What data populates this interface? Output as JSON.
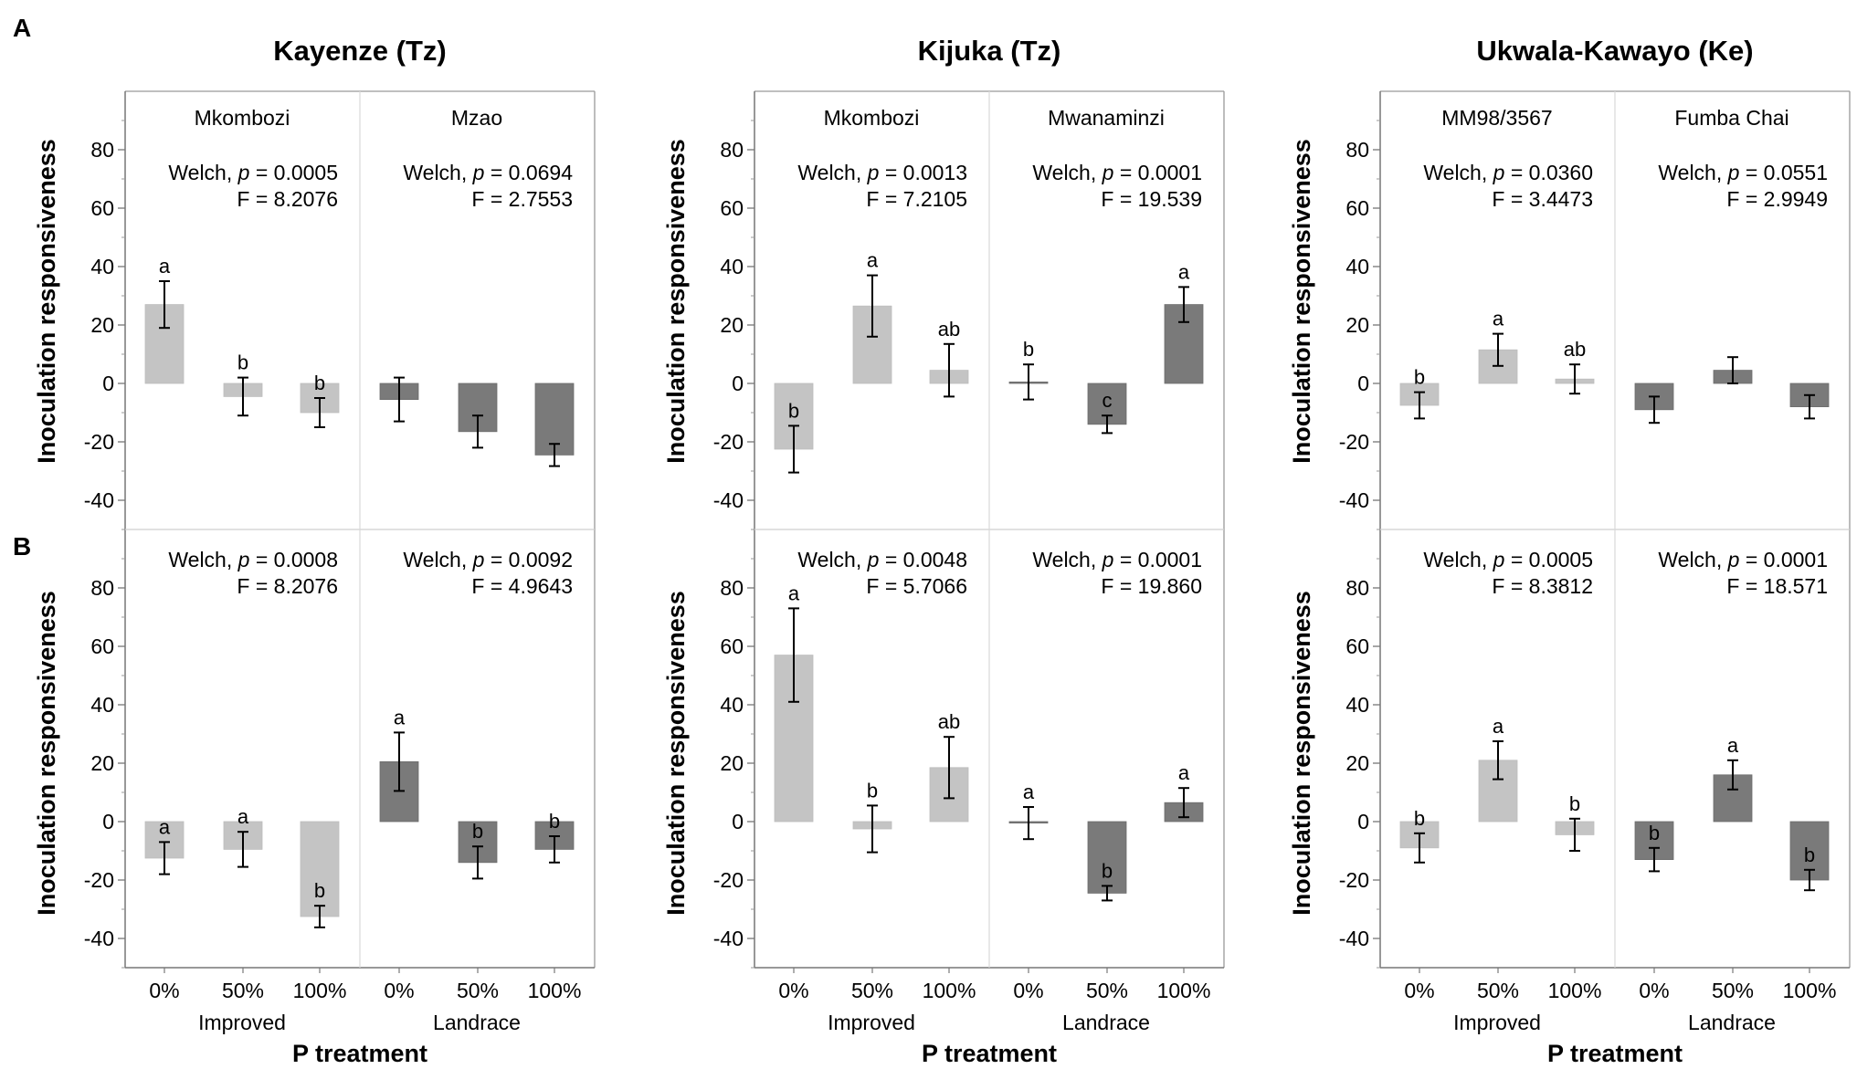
{
  "figure": {
    "row_labels": [
      "A",
      "B"
    ],
    "x_treatment_label": "P treatment",
    "y_axis_label": "Inoculation responsiveness",
    "welch_prefix": "Welch, ",
    "p_letter": "p",
    "colors": {
      "improved": "#c4c4c4",
      "landrace": "#7a7a7a",
      "axis": "#999999",
      "text": "#000000",
      "bar_outline": "#aaaaaa"
    }
  },
  "chart_data": [
    {
      "type": "bar",
      "title": "Kayenze (Tz)",
      "ylabel": "Inoculation responsiveness",
      "xlabel": "P treatment",
      "ylim": [
        -50,
        100
      ],
      "yticks": [
        -40,
        -20,
        0,
        20,
        40,
        60,
        80
      ],
      "categories": [
        "0%",
        "50%",
        "100%"
      ],
      "groups": [
        "Improved",
        "Landrace"
      ],
      "varieties": [
        "Mkombozi",
        "Mzao"
      ],
      "rows": [
        {
          "row": "A",
          "panels": [
            {
              "variety": "Mkombozi",
              "group": "Improved",
              "stats": [
                "= 0.0005",
                "F = 8.2076"
              ],
              "values": [
                27,
                -4.5,
                -10
              ],
              "errors": [
                8,
                6.5,
                5
              ],
              "letters": [
                "a",
                "b",
                "b"
              ]
            },
            {
              "variety": "Mzao",
              "group": "Landrace",
              "stats": [
                "= 0.0694",
                "F = 2.7553"
              ],
              "values": [
                -5.5,
                -16.5,
                -24.5
              ],
              "errors": [
                7.5,
                5.5,
                3.8
              ],
              "letters": [
                "",
                "",
                ""
              ]
            }
          ]
        },
        {
          "row": "B",
          "panels": [
            {
              "variety": "",
              "group": "Improved",
              "stats": [
                "= 0.0008",
                "F = 8.2076"
              ],
              "values": [
                -12.5,
                -9.5,
                -32.5
              ],
              "errors": [
                5.5,
                6,
                3.7
              ],
              "letters": [
                "a",
                "a",
                "b"
              ]
            },
            {
              "variety": "",
              "group": "Landrace",
              "stats": [
                "= 0.0092",
                "F = 4.9643"
              ],
              "values": [
                20.5,
                -14,
                -9.5
              ],
              "errors": [
                10,
                5.5,
                4.5
              ],
              "letters": [
                "a",
                "b",
                "b"
              ]
            }
          ]
        }
      ]
    },
    {
      "type": "bar",
      "title": "Kijuka (Tz)",
      "ylabel": "Inoculation responsiveness",
      "xlabel": "P treatment",
      "ylim": [
        -50,
        100
      ],
      "yticks": [
        -40,
        -20,
        0,
        20,
        40,
        60,
        80
      ],
      "categories": [
        "0%",
        "50%",
        "100%"
      ],
      "groups": [
        "Improved",
        "Landrace"
      ],
      "varieties": [
        "Mkombozi",
        "Mwanaminzi"
      ],
      "rows": [
        {
          "row": "A",
          "panels": [
            {
              "variety": "Mkombozi",
              "group": "Improved",
              "stats": [
                "= 0.0013",
                "F = 7.2105"
              ],
              "values": [
                -22.5,
                26.5,
                4.5
              ],
              "errors": [
                8,
                10.5,
                9
              ],
              "letters": [
                "b",
                "a",
                "ab"
              ]
            },
            {
              "variety": "Mwanaminzi",
              "group": "Landrace",
              "stats": [
                "= 0.0001",
                "F = 19.539"
              ],
              "values": [
                0.5,
                -14,
                27
              ],
              "errors": [
                6,
                3,
                6
              ],
              "letters": [
                "b",
                "c",
                "a"
              ]
            }
          ]
        },
        {
          "row": "B",
          "panels": [
            {
              "variety": "",
              "group": "Improved",
              "stats": [
                "= 0.0048",
                "F = 5.7066"
              ],
              "values": [
                57,
                -2.5,
                18.5
              ],
              "errors": [
                16,
                8,
                10.5
              ],
              "letters": [
                "a",
                "b",
                "ab"
              ]
            },
            {
              "variety": "",
              "group": "Landrace",
              "stats": [
                "= 0.0001",
                "F = 19.860"
              ],
              "values": [
                -0.5,
                -24.5,
                6.5
              ],
              "errors": [
                5.5,
                2.5,
                5
              ],
              "letters": [
                "a",
                "b",
                "a"
              ]
            }
          ]
        }
      ]
    },
    {
      "type": "bar",
      "title": "Ukwala-Kawayo (Ke)",
      "ylabel": "Inoculation responsiveness",
      "xlabel": "P treatment",
      "ylim": [
        -50,
        100
      ],
      "yticks": [
        -40,
        -20,
        0,
        20,
        40,
        60,
        80
      ],
      "categories": [
        "0%",
        "50%",
        "100%"
      ],
      "groups": [
        "Improved",
        "Landrace"
      ],
      "varieties": [
        "MM98/3567",
        "Fumba Chai"
      ],
      "rows": [
        {
          "row": "A",
          "panels": [
            {
              "variety": "MM98/3567",
              "group": "Improved",
              "stats": [
                "= 0.0360",
                "F = 3.4473"
              ],
              "values": [
                -7.5,
                11.5,
                1.5
              ],
              "errors": [
                4.5,
                5.5,
                5
              ],
              "letters": [
                "b",
                "a",
                "ab"
              ]
            },
            {
              "variety": "Fumba Chai",
              "group": "Landrace",
              "stats": [
                "= 0.0551",
                "F = 2.9949"
              ],
              "values": [
                -9,
                4.5,
                -8
              ],
              "errors": [
                4.5,
                4.5,
                4
              ],
              "letters": [
                "",
                "",
                ""
              ]
            }
          ]
        },
        {
          "row": "B",
          "panels": [
            {
              "variety": "",
              "group": "Improved",
              "stats": [
                "= 0.0005",
                "F = 8.3812"
              ],
              "values": [
                -9,
                21,
                -4.5
              ],
              "errors": [
                5,
                6.5,
                5.5
              ],
              "letters": [
                "b",
                "a",
                "b"
              ]
            },
            {
              "variety": "",
              "group": "Landrace",
              "stats": [
                "= 0.0001",
                "F = 18.571"
              ],
              "values": [
                -13,
                16,
                -20
              ],
              "errors": [
                4,
                5,
                3.5
              ],
              "letters": [
                "b",
                "a",
                "b"
              ]
            }
          ]
        }
      ]
    }
  ]
}
